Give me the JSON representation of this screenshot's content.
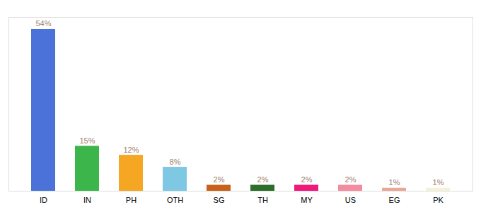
{
  "chart_data": {
    "type": "bar",
    "categories": [
      "ID",
      "IN",
      "PH",
      "OTH",
      "SG",
      "TH",
      "MY",
      "US",
      "EG",
      "PK"
    ],
    "values": [
      54,
      15,
      12,
      8,
      2,
      2,
      2,
      2,
      1,
      1
    ],
    "value_labels": [
      "54%",
      "15%",
      "12%",
      "8%",
      "2%",
      "2%",
      "2%",
      "2%",
      "1%",
      "1%"
    ],
    "colors": [
      "#4a72d9",
      "#3cb54a",
      "#f5a623",
      "#7ec8e3",
      "#c8621a",
      "#2d6e2d",
      "#f0197a",
      "#f48ca0",
      "#e8a898",
      "#f5f0d8"
    ],
    "ylim": [
      0,
      58
    ],
    "grid": false,
    "data_labels": true,
    "tick_labels": "x"
  }
}
